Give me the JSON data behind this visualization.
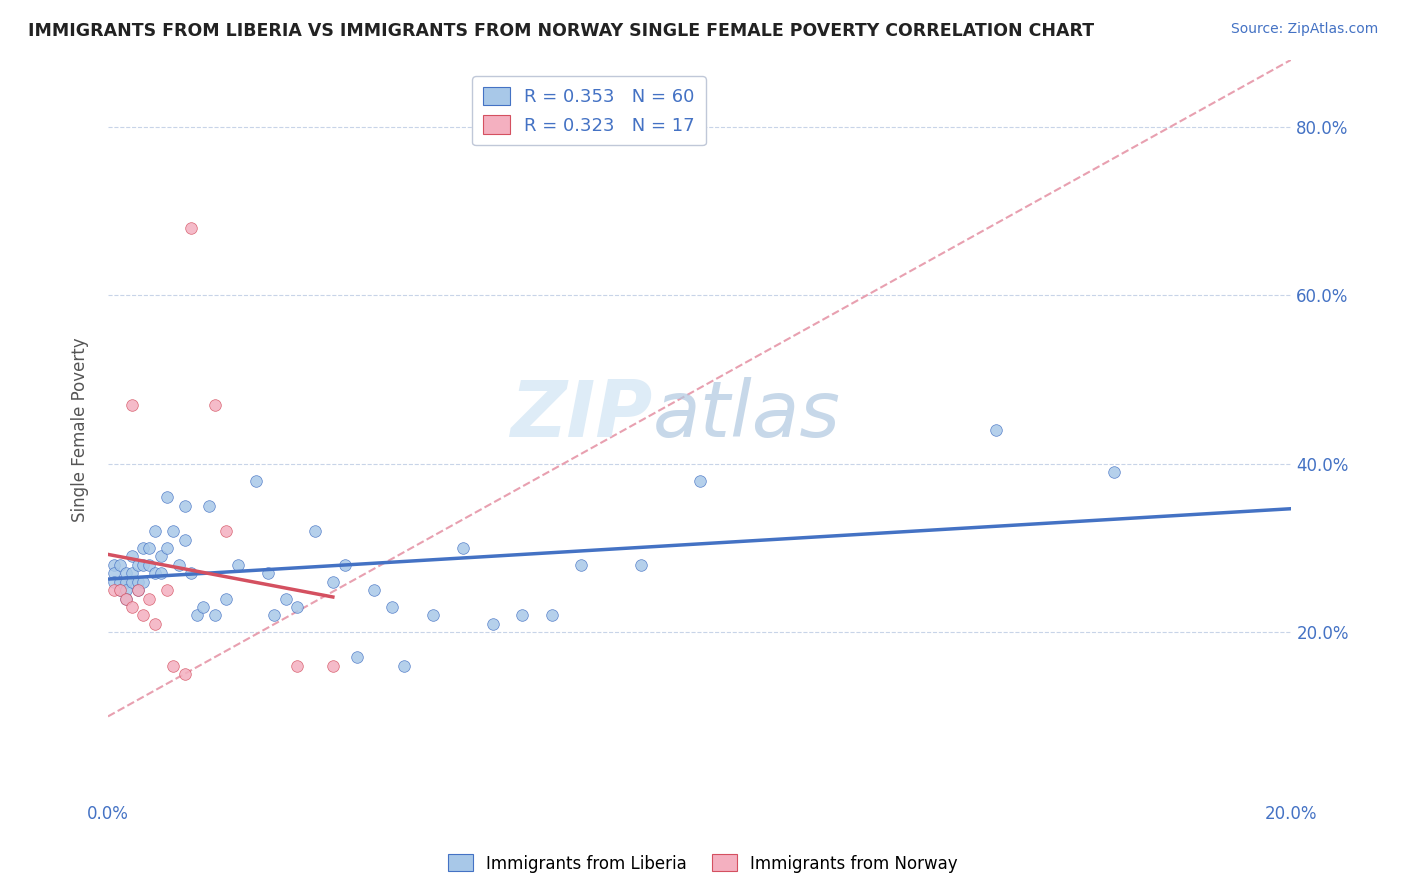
{
  "title": "IMMIGRANTS FROM LIBERIA VS IMMIGRANTS FROM NORWAY SINGLE FEMALE POVERTY CORRELATION CHART",
  "source_text": "Source: ZipAtlas.com",
  "ylabel": "Single Female Poverty",
  "xlim": [
    0.0,
    0.2
  ],
  "ylim": [
    0.0,
    0.88
  ],
  "R_liberia": 0.353,
  "N_liberia": 60,
  "R_norway": 0.323,
  "N_norway": 17,
  "liberia_color": "#a8c8e8",
  "norway_color": "#f4b0c0",
  "liberia_line_color": "#4472c4",
  "norway_line_color": "#d45060",
  "ref_line_color": "#e8a0b0",
  "watermark_zip": "ZIP",
  "watermark_atlas": "atlas",
  "liberia_x": [
    0.001,
    0.001,
    0.001,
    0.002,
    0.002,
    0.002,
    0.003,
    0.003,
    0.003,
    0.003,
    0.004,
    0.004,
    0.004,
    0.005,
    0.005,
    0.005,
    0.006,
    0.006,
    0.006,
    0.007,
    0.007,
    0.008,
    0.008,
    0.009,
    0.009,
    0.01,
    0.01,
    0.011,
    0.012,
    0.013,
    0.013,
    0.014,
    0.015,
    0.016,
    0.017,
    0.018,
    0.02,
    0.022,
    0.025,
    0.027,
    0.028,
    0.03,
    0.032,
    0.035,
    0.038,
    0.04,
    0.042,
    0.045,
    0.048,
    0.05,
    0.055,
    0.06,
    0.065,
    0.07,
    0.075,
    0.08,
    0.09,
    0.1,
    0.15,
    0.17
  ],
  "liberia_y": [
    0.28,
    0.27,
    0.26,
    0.26,
    0.28,
    0.25,
    0.27,
    0.26,
    0.25,
    0.24,
    0.29,
    0.27,
    0.26,
    0.28,
    0.26,
    0.25,
    0.3,
    0.28,
    0.26,
    0.3,
    0.28,
    0.32,
    0.27,
    0.29,
    0.27,
    0.36,
    0.3,
    0.32,
    0.28,
    0.35,
    0.31,
    0.27,
    0.22,
    0.23,
    0.35,
    0.22,
    0.24,
    0.28,
    0.38,
    0.27,
    0.22,
    0.24,
    0.23,
    0.32,
    0.26,
    0.28,
    0.17,
    0.25,
    0.23,
    0.16,
    0.22,
    0.3,
    0.21,
    0.22,
    0.22,
    0.28,
    0.28,
    0.38,
    0.44,
    0.39
  ],
  "norway_x": [
    0.001,
    0.002,
    0.003,
    0.004,
    0.004,
    0.005,
    0.006,
    0.007,
    0.008,
    0.01,
    0.011,
    0.013,
    0.014,
    0.018,
    0.02,
    0.032,
    0.038
  ],
  "norway_y": [
    0.25,
    0.25,
    0.24,
    0.23,
    0.47,
    0.25,
    0.22,
    0.24,
    0.21,
    0.25,
    0.16,
    0.15,
    0.68,
    0.47,
    0.32,
    0.16,
    0.16
  ]
}
